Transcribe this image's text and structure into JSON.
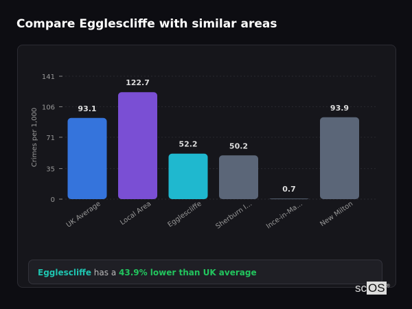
{
  "page": {
    "title": "Compare Egglescliffe with similar areas"
  },
  "summary": {
    "area": "Egglescliffe",
    "middle": " has a ",
    "highlight": "43.9% lower than UK average"
  },
  "logo": {
    "text_a": "sc",
    "text_b": "OS",
    "mark": "®"
  },
  "chart_data": {
    "type": "bar",
    "ylabel": "Crimes per 1,000",
    "ylim": [
      0,
      141
    ],
    "yticks": [
      0,
      35,
      71,
      106,
      141
    ],
    "grid": true,
    "categories": [
      "UK Average",
      "Local Area",
      "Egglescliffe",
      "Sherburn I...",
      "Ince-in-Ma...",
      "New Milton"
    ],
    "values": [
      93.1,
      122.7,
      52.2,
      50.2,
      0.7,
      93.9
    ],
    "data_labels": [
      "93.1",
      "122.7",
      "52.2",
      "50.2",
      "0.7",
      "93.9"
    ],
    "colors": [
      "#3574dc",
      "#7a4fd4",
      "#1fb8cf",
      "#5b6678",
      "#5b6678",
      "#5b6678"
    ]
  }
}
